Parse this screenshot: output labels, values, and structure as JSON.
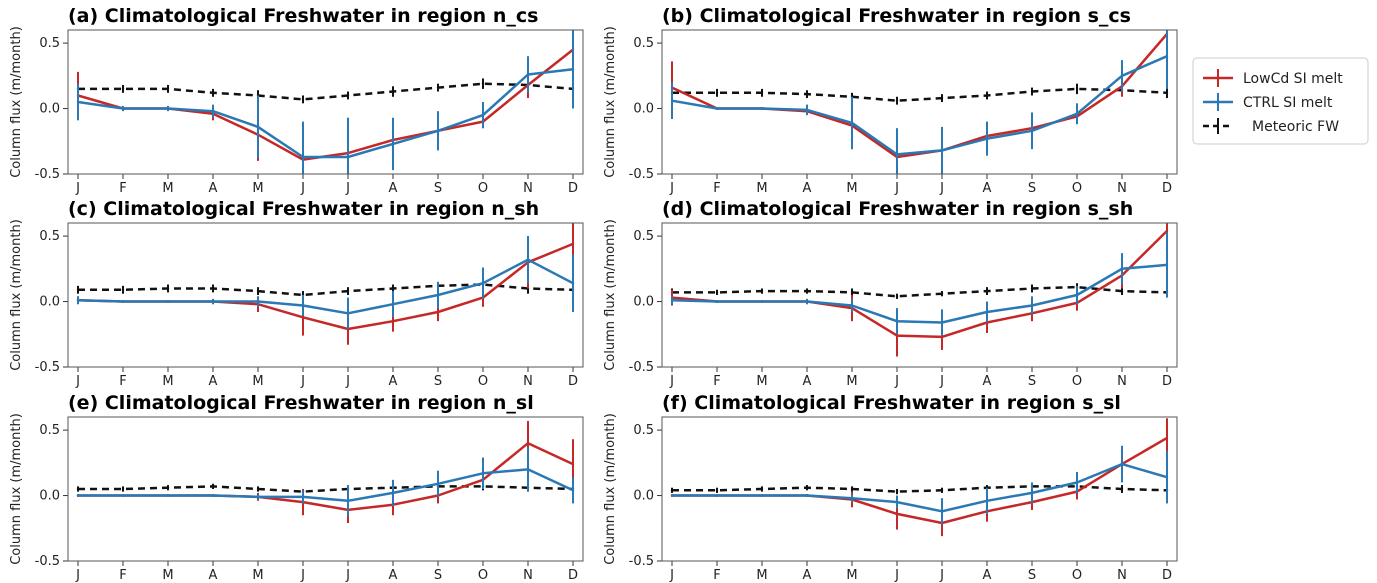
{
  "colors": {
    "lowcd": "#c62828",
    "ctrl": "#2a78b4",
    "meteoric": "#111111"
  },
  "legend": {
    "placement": "right",
    "items": [
      {
        "label": "LowCd SI melt",
        "color": "#c62828",
        "style": "solid"
      },
      {
        "label": "CTRL SI melt",
        "color": "#2a78b4",
        "style": "solid"
      },
      {
        "label": "Meteoric FW",
        "color": "#111111",
        "style": "dashed"
      }
    ]
  },
  "chart_data": [
    {
      "type": "line",
      "title": "(a) Climatological Freshwater in region n_cs",
      "ylabel": "Column flux (m/month)",
      "categories": [
        "J",
        "F",
        "M",
        "A",
        "M",
        "J",
        "J",
        "A",
        "S",
        "O",
        "N",
        "D"
      ],
      "ylim": [
        -0.5,
        0.6
      ],
      "yticks": [
        -0.5,
        0.0,
        0.5
      ],
      "series": [
        {
          "name": "LowCd SI melt",
          "color": "#c62828",
          "values": [
            0.1,
            0.0,
            0.0,
            -0.04,
            -0.2,
            -0.39,
            -0.34,
            -0.24,
            -0.17,
            -0.1,
            0.18,
            0.45
          ],
          "err": [
            0.18,
            0,
            0,
            0.05,
            0.2,
            0.12,
            0.22,
            0.14,
            0.1,
            0.05,
            0.1,
            0.15
          ]
        },
        {
          "name": "CTRL SI melt",
          "color": "#2a78b4",
          "values": [
            0.05,
            0.0,
            0.0,
            -0.02,
            -0.14,
            -0.37,
            -0.37,
            -0.27,
            -0.17,
            -0.05,
            0.26,
            0.3
          ],
          "err": [
            0.14,
            0.02,
            0.02,
            0.05,
            0.24,
            0.27,
            0.3,
            0.2,
            0.15,
            0.1,
            0.14,
            0.3
          ]
        },
        {
          "name": "Meteoric FW",
          "color": "#111111",
          "dashed": true,
          "values": [
            0.15,
            0.15,
            0.15,
            0.12,
            0.1,
            0.07,
            0.1,
            0.13,
            0.16,
            0.19,
            0.18,
            0.15
          ],
          "err": [
            0.04,
            0.03,
            0.03,
            0.03,
            0.04,
            0.03,
            0.03,
            0.04,
            0.03,
            0.04,
            0.05,
            0.04
          ]
        }
      ]
    },
    {
      "type": "line",
      "title": "(b) Climatological Freshwater in region s_cs",
      "ylabel": "Column flux (m/month)",
      "categories": [
        "J",
        "F",
        "M",
        "A",
        "M",
        "J",
        "J",
        "A",
        "S",
        "O",
        "N",
        "D"
      ],
      "ylim": [
        -0.5,
        0.6
      ],
      "yticks": [
        -0.5,
        0.0,
        0.5
      ],
      "series": [
        {
          "name": "LowCd SI melt",
          "color": "#c62828",
          "values": [
            0.16,
            0.0,
            0.0,
            -0.02,
            -0.13,
            -0.37,
            -0.32,
            -0.21,
            -0.15,
            -0.06,
            0.17,
            0.57
          ],
          "err": [
            0.2,
            0,
            0,
            0.03,
            0.18,
            0.04,
            0.05,
            0.1,
            0.08,
            0.05,
            0.08,
            0.1
          ]
        },
        {
          "name": "CTRL SI melt",
          "color": "#2a78b4",
          "values": [
            0.06,
            0.0,
            0.0,
            -0.01,
            -0.11,
            -0.35,
            -0.32,
            -0.23,
            -0.17,
            -0.04,
            0.25,
            0.4
          ],
          "err": [
            0.14,
            0.01,
            0.01,
            0.04,
            0.2,
            0.2,
            0.18,
            0.13,
            0.14,
            0.08,
            0.12,
            0.25
          ]
        },
        {
          "name": "Meteoric FW",
          "color": "#111111",
          "dashed": true,
          "values": [
            0.12,
            0.12,
            0.12,
            0.11,
            0.09,
            0.06,
            0.08,
            0.1,
            0.13,
            0.15,
            0.14,
            0.12
          ],
          "err": [
            0.03,
            0.03,
            0.03,
            0.03,
            0.03,
            0.03,
            0.03,
            0.03,
            0.03,
            0.04,
            0.04,
            0.04
          ]
        }
      ]
    },
    {
      "type": "line",
      "title": "(c) Climatological Freshwater in region n_sh",
      "ylabel": "Column flux (m/month)",
      "categories": [
        "J",
        "F",
        "M",
        "A",
        "M",
        "J",
        "J",
        "A",
        "S",
        "O",
        "N",
        "D"
      ],
      "ylim": [
        -0.5,
        0.6
      ],
      "yticks": [
        -0.5,
        0.0,
        0.5
      ],
      "series": [
        {
          "name": "LowCd SI melt",
          "color": "#c62828",
          "values": [
            0.01,
            0.0,
            0.0,
            0.0,
            -0.02,
            -0.12,
            -0.21,
            -0.15,
            -0.08,
            0.03,
            0.3,
            0.44
          ],
          "err": [
            0.03,
            0,
            0,
            0.02,
            0.06,
            0.14,
            0.12,
            0.08,
            0.07,
            0.07,
            0.2,
            0.16
          ]
        },
        {
          "name": "CTRL SI melt",
          "color": "#2a78b4",
          "values": [
            0.01,
            0.0,
            0.0,
            0.0,
            0.0,
            -0.03,
            -0.09,
            -0.02,
            0.05,
            0.14,
            0.32,
            0.14
          ],
          "err": [
            0.03,
            0.01,
            0.01,
            0.02,
            0.04,
            0.08,
            0.12,
            0.1,
            0.1,
            0.12,
            0.18,
            0.22
          ]
        },
        {
          "name": "Meteoric FW",
          "color": "#111111",
          "dashed": true,
          "values": [
            0.09,
            0.09,
            0.1,
            0.1,
            0.08,
            0.05,
            0.08,
            0.1,
            0.12,
            0.13,
            0.1,
            0.09
          ],
          "err": [
            0.03,
            0.03,
            0.03,
            0.03,
            0.03,
            0.03,
            0.03,
            0.03,
            0.03,
            0.04,
            0.04,
            0.04
          ]
        }
      ]
    },
    {
      "type": "line",
      "title": "(d) Climatological Freshwater in region s_sh",
      "ylabel": "Column flux (m/month)",
      "categories": [
        "J",
        "F",
        "M",
        "A",
        "M",
        "J",
        "J",
        "A",
        "S",
        "O",
        "N",
        "D"
      ],
      "ylim": [
        -0.5,
        0.6
      ],
      "yticks": [
        -0.5,
        0.0,
        0.5
      ],
      "series": [
        {
          "name": "LowCd SI melt",
          "color": "#c62828",
          "values": [
            0.03,
            0.0,
            0.0,
            0.0,
            -0.05,
            -0.26,
            -0.27,
            -0.16,
            -0.09,
            -0.01,
            0.2,
            0.54
          ],
          "err": [
            0.06,
            0,
            0,
            0.02,
            0.1,
            0.16,
            0.1,
            0.08,
            0.06,
            0.06,
            0.1,
            0.1
          ]
        },
        {
          "name": "CTRL SI melt",
          "color": "#2a78b4",
          "values": [
            0.01,
            0.0,
            0.0,
            0.0,
            -0.03,
            -0.15,
            -0.16,
            -0.08,
            -0.03,
            0.05,
            0.25,
            0.28
          ],
          "err": [
            0.03,
            0.01,
            0.01,
            0.02,
            0.05,
            0.1,
            0.1,
            0.08,
            0.07,
            0.07,
            0.12,
            0.25
          ]
        },
        {
          "name": "Meteoric FW",
          "color": "#111111",
          "dashed": true,
          "values": [
            0.07,
            0.07,
            0.08,
            0.08,
            0.07,
            0.04,
            0.06,
            0.08,
            0.1,
            0.11,
            0.08,
            0.07
          ],
          "err": [
            0.03,
            0.02,
            0.02,
            0.02,
            0.03,
            0.02,
            0.02,
            0.03,
            0.03,
            0.03,
            0.03,
            0.03
          ]
        }
      ]
    },
    {
      "type": "line",
      "title": "(e) Climatological Freshwater in region n_sl",
      "ylabel": "Column flux (m/month)",
      "categories": [
        "J",
        "F",
        "M",
        "A",
        "M",
        "J",
        "J",
        "A",
        "S",
        "O",
        "N",
        "D"
      ],
      "ylim": [
        -0.5,
        0.6
      ],
      "yticks": [
        -0.5,
        0.0,
        0.5
      ],
      "series": [
        {
          "name": "LowCd SI melt",
          "color": "#c62828",
          "values": [
            0.0,
            0.0,
            0.0,
            0.0,
            -0.01,
            -0.05,
            -0.11,
            -0.07,
            0.0,
            0.12,
            0.4,
            0.24
          ],
          "err": [
            0.01,
            0,
            0,
            0.01,
            0.03,
            0.1,
            0.1,
            0.08,
            0.06,
            0.07,
            0.17,
            0.19
          ]
        },
        {
          "name": "CTRL SI melt",
          "color": "#2a78b4",
          "values": [
            0.0,
            0.0,
            0.0,
            0.0,
            -0.01,
            -0.01,
            -0.04,
            0.02,
            0.09,
            0.17,
            0.2,
            0.04
          ],
          "err": [
            0.01,
            0.01,
            0.01,
            0.01,
            0.02,
            0.05,
            0.12,
            0.1,
            0.1,
            0.12,
            0.17,
            0.1
          ]
        },
        {
          "name": "Meteoric FW",
          "color": "#111111",
          "dashed": true,
          "values": [
            0.05,
            0.05,
            0.06,
            0.07,
            0.05,
            0.03,
            0.05,
            0.06,
            0.07,
            0.07,
            0.06,
            0.05
          ],
          "err": [
            0.02,
            0.02,
            0.02,
            0.02,
            0.02,
            0.02,
            0.02,
            0.02,
            0.02,
            0.03,
            0.03,
            0.03
          ]
        }
      ]
    },
    {
      "type": "line",
      "title": "(f) Climatological Freshwater in region s_sl",
      "ylabel": "Column flux (m/month)",
      "categories": [
        "J",
        "F",
        "M",
        "A",
        "M",
        "J",
        "J",
        "A",
        "S",
        "O",
        "N",
        "D"
      ],
      "ylim": [
        -0.5,
        0.6
      ],
      "yticks": [
        -0.5,
        0.0,
        0.5
      ],
      "series": [
        {
          "name": "LowCd SI melt",
          "color": "#c62828",
          "values": [
            0.0,
            0.0,
            0.0,
            0.0,
            -0.03,
            -0.14,
            -0.21,
            -0.12,
            -0.05,
            0.03,
            0.24,
            0.44
          ],
          "err": [
            0.01,
            0,
            0,
            0.01,
            0.06,
            0.12,
            0.1,
            0.08,
            0.06,
            0.06,
            0.1,
            0.15
          ]
        },
        {
          "name": "CTRL SI melt",
          "color": "#2a78b4",
          "values": [
            0.0,
            0.0,
            0.0,
            0.0,
            -0.02,
            -0.05,
            -0.12,
            -0.04,
            0.02,
            0.1,
            0.24,
            0.14
          ],
          "err": [
            0.01,
            0.01,
            0.01,
            0.01,
            0.03,
            0.05,
            0.1,
            0.1,
            0.08,
            0.08,
            0.14,
            0.2
          ]
        },
        {
          "name": "Meteoric FW",
          "color": "#111111",
          "dashed": true,
          "values": [
            0.04,
            0.04,
            0.05,
            0.06,
            0.05,
            0.03,
            0.04,
            0.06,
            0.07,
            0.07,
            0.05,
            0.04
          ],
          "err": [
            0.02,
            0.02,
            0.02,
            0.02,
            0.02,
            0.02,
            0.02,
            0.02,
            0.02,
            0.03,
            0.03,
            0.03
          ]
        }
      ]
    }
  ]
}
